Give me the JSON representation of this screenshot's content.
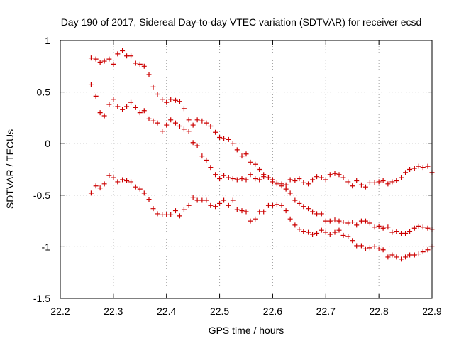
{
  "chart_data": {
    "type": "scatter",
    "title": "Day 190 of 2017, Sidereal Day-to-day VTEC variation (SDTVAR) for receiver ecsd",
    "xlabel": "GPS time / hours",
    "ylabel": "SDTVAR / TECUs",
    "xlim": [
      22.2,
      22.9
    ],
    "ylim": [
      -1.5,
      1
    ],
    "x_ticks": [
      "22.2",
      "22.3",
      "22.4",
      "22.5",
      "22.6",
      "22.7",
      "22.8",
      "22.9"
    ],
    "x_tick_values": [
      22.2,
      22.3,
      22.4,
      22.5,
      22.6,
      22.7,
      22.8,
      22.9
    ],
    "y_ticks": [
      "1",
      "0.5",
      "0",
      "-0.5",
      "-1",
      "-1.5"
    ],
    "y_tick_values": [
      1,
      0.5,
      0,
      -0.5,
      -1,
      -1.5
    ],
    "grid": true,
    "marker": "+",
    "color": "#cc0000",
    "series": [
      {
        "name": "series-1",
        "x": [
          22.258,
          22.267,
          22.275,
          22.283,
          22.292,
          22.3,
          22.308,
          22.317,
          22.325,
          22.333,
          22.342,
          22.35,
          22.358,
          22.367,
          22.375,
          22.383,
          22.392,
          22.4,
          22.408,
          22.417,
          22.425,
          22.433,
          22.442,
          22.45,
          22.458,
          22.467,
          22.475,
          22.483,
          22.492,
          22.5,
          22.508,
          22.517,
          22.525,
          22.533,
          22.542,
          22.55,
          22.558,
          22.567,
          22.575,
          22.583,
          22.592,
          22.6,
          22.608,
          22.617,
          22.625,
          22.633,
          22.642,
          22.65,
          22.658,
          22.667,
          22.675,
          22.683,
          22.692,
          22.7,
          22.708,
          22.717,
          22.725,
          22.733,
          22.742,
          22.75,
          22.758,
          22.767,
          22.775,
          22.783,
          22.792,
          22.8,
          22.808,
          22.817,
          22.825,
          22.833,
          22.842,
          22.85,
          22.858,
          22.867,
          22.875,
          22.883,
          22.892,
          22.9
        ],
        "y": [
          0.83,
          0.82,
          0.79,
          0.8,
          0.82,
          0.77,
          0.87,
          0.9,
          0.85,
          0.85,
          0.78,
          0.77,
          0.75,
          0.67,
          0.55,
          0.48,
          0.43,
          0.4,
          0.43,
          0.42,
          0.41,
          0.34,
          0.23,
          0.01,
          -0.02,
          -0.12,
          -0.16,
          -0.23,
          -0.3,
          -0.34,
          -0.31,
          -0.33,
          -0.34,
          -0.35,
          -0.34,
          -0.35,
          -0.3,
          -0.34,
          -0.35,
          -0.32,
          -0.33,
          -0.35,
          -0.38,
          -0.39,
          -0.4,
          -0.35,
          -0.36,
          -0.34,
          -0.38,
          -0.39,
          -0.35,
          -0.32,
          -0.33,
          -0.35,
          -0.3,
          -0.29,
          -0.3,
          -0.33,
          -0.37,
          -0.41,
          -0.36,
          -0.4,
          -0.42,
          -0.38,
          -0.38,
          -0.37,
          -0.36,
          -0.39,
          -0.37,
          -0.36,
          -0.33,
          -0.28,
          -0.25,
          -0.24,
          -0.22,
          -0.23,
          -0.22,
          -0.28
        ]
      },
      {
        "name": "series-2",
        "x": [
          22.258,
          22.267,
          22.275,
          22.283,
          22.292,
          22.3,
          22.308,
          22.317,
          22.325,
          22.333,
          22.342,
          22.35,
          22.358,
          22.367,
          22.375,
          22.383,
          22.392,
          22.4,
          22.408,
          22.417,
          22.425,
          22.433,
          22.442,
          22.45,
          22.458,
          22.467,
          22.475,
          22.483,
          22.492,
          22.5,
          22.508,
          22.517,
          22.525,
          22.533,
          22.542,
          22.55,
          22.558,
          22.567,
          22.575,
          22.583,
          22.592,
          22.6,
          22.608,
          22.617,
          22.625,
          22.633,
          22.642,
          22.65,
          22.658,
          22.667,
          22.675,
          22.683,
          22.692,
          22.7,
          22.708,
          22.717,
          22.725,
          22.733,
          22.742,
          22.75,
          22.758,
          22.767,
          22.775,
          22.783,
          22.792,
          22.8,
          22.808,
          22.817,
          22.825,
          22.833,
          22.842,
          22.85,
          22.858,
          22.867,
          22.875,
          22.883,
          22.892,
          22.9
        ],
        "y": [
          0.57,
          0.46,
          0.3,
          0.27,
          0.38,
          0.43,
          0.36,
          0.33,
          0.36,
          0.4,
          0.35,
          0.3,
          0.32,
          0.24,
          0.22,
          0.2,
          0.12,
          0.18,
          0.23,
          0.2,
          0.17,
          0.14,
          0.12,
          0.18,
          0.23,
          0.22,
          0.2,
          0.17,
          0.11,
          0.06,
          0.05,
          0.04,
          0.0,
          -0.06,
          -0.12,
          -0.1,
          -0.18,
          -0.2,
          -0.25,
          -0.3,
          -0.33,
          -0.37,
          -0.39,
          -0.41,
          -0.44,
          -0.48,
          -0.55,
          -0.58,
          -0.61,
          -0.63,
          -0.66,
          -0.68,
          -0.68,
          -0.75,
          -0.75,
          -0.74,
          -0.75,
          -0.76,
          -0.77,
          -0.76,
          -0.79,
          -0.75,
          -0.75,
          -0.77,
          -0.81,
          -0.8,
          -0.82,
          -0.81,
          -0.86,
          -0.85,
          -0.87,
          -0.87,
          -0.85,
          -0.82,
          -0.8,
          -0.81,
          -0.82,
          -0.83
        ]
      },
      {
        "name": "series-3",
        "x": [
          22.258,
          22.267,
          22.275,
          22.283,
          22.292,
          22.3,
          22.308,
          22.317,
          22.325,
          22.333,
          22.342,
          22.35,
          22.358,
          22.367,
          22.375,
          22.383,
          22.392,
          22.4,
          22.408,
          22.417,
          22.425,
          22.433,
          22.442,
          22.45,
          22.458,
          22.467,
          22.475,
          22.483,
          22.492,
          22.5,
          22.508,
          22.517,
          22.525,
          22.533,
          22.542,
          22.55,
          22.558,
          22.567,
          22.575,
          22.583,
          22.592,
          22.6,
          22.608,
          22.617,
          22.625,
          22.633,
          22.642,
          22.65,
          22.658,
          22.667,
          22.675,
          22.683,
          22.692,
          22.7,
          22.708,
          22.717,
          22.725,
          22.733,
          22.742,
          22.75,
          22.758,
          22.767,
          22.775,
          22.783,
          22.792,
          22.8,
          22.808,
          22.817,
          22.825,
          22.833,
          22.842,
          22.85,
          22.858,
          22.867,
          22.875,
          22.883,
          22.892,
          22.9
        ],
        "y": [
          -0.48,
          -0.41,
          -0.43,
          -0.39,
          -0.31,
          -0.33,
          -0.37,
          -0.35,
          -0.36,
          -0.37,
          -0.42,
          -0.44,
          -0.48,
          -0.54,
          -0.63,
          -0.68,
          -0.69,
          -0.69,
          -0.69,
          -0.65,
          -0.7,
          -0.64,
          -0.6,
          -0.52,
          -0.55,
          -0.55,
          -0.55,
          -0.6,
          -0.61,
          -0.58,
          -0.55,
          -0.6,
          -0.55,
          -0.64,
          -0.65,
          -0.66,
          -0.75,
          -0.73,
          -0.66,
          -0.66,
          -0.6,
          -0.6,
          -0.59,
          -0.6,
          -0.65,
          -0.73,
          -0.79,
          -0.83,
          -0.85,
          -0.86,
          -0.88,
          -0.87,
          -0.84,
          -0.86,
          -0.88,
          -0.86,
          -0.84,
          -0.89,
          -0.9,
          -0.94,
          -0.99,
          -0.99,
          -1.02,
          -1.01,
          -1.0,
          -1.02,
          -1.03,
          -1.1,
          -1.08,
          -1.1,
          -1.12,
          -1.1,
          -1.08,
          -1.08,
          -1.07,
          -1.05,
          -1.03,
          -1.0
        ]
      }
    ]
  }
}
